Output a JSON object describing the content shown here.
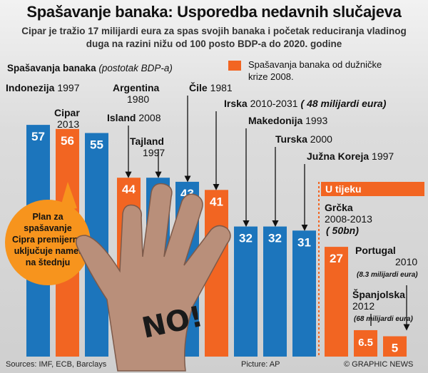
{
  "header": {
    "title": "Spašavanje banaka: Usporedba nedavnih slučajeva",
    "subtitle": "Cipar je tražio 17 milijardi eura za spas svojih banaka i početak reduciranja vladinog duga na razini nižu od 100 posto BDP-a do 2020. godine"
  },
  "legend": {
    "gray_label_bold": "Spašavanja banaka",
    "gray_label_italic": "(postotak BDP-a)",
    "orange_label": "Spašavanja banaka od dužničke krize 2008."
  },
  "callout": {
    "text_lines": [
      "Plan za",
      "spašavanje",
      "Cipra premijerno",
      "uključuje namet",
      "na štednju"
    ]
  },
  "in_progress_label": "U tijeku",
  "footer": {
    "sources": "Sources: IMF, ECB, Barclays",
    "picture": "Picture: AP",
    "credit": "© GRAPHIC NEWS"
  },
  "colors": {
    "blue": "#1c75bc",
    "orange": "#f26522",
    "dark": "#111111",
    "callout_bg": "#f7941d"
  },
  "chart_data": {
    "type": "bar",
    "title": "Spašavanje banaka: Usporedba nedavnih slučajeva",
    "ylabel": "Spašavanja banaka (postotak BDP-a)",
    "ylim": [
      0,
      60
    ],
    "grid": false,
    "legend_position": "top",
    "categories": [
      "Indonezija 1997",
      "Cipar 2013",
      "Argentina 1980",
      "Island 2008",
      "Tajland 1997",
      "Čile 1981",
      "Irska 2010-2031",
      "Makedonija 1993",
      "Turska 2000",
      "Južna Koreja 1997",
      "Grčka 2008-2013",
      "Portugal 2010",
      "Španjolska 2012"
    ],
    "series": [
      {
        "values": [
          57,
          56,
          55,
          44,
          44,
          43,
          41,
          32,
          32,
          31,
          27,
          6.5,
          5
        ],
        "value_labels": [
          "57",
          "56",
          "55",
          "44",
          "44",
          "43",
          "41",
          "32",
          "32",
          "31",
          "27",
          "6.5",
          "5"
        ],
        "colors": [
          "#1c75bc",
          "#f26522",
          "#1c75bc",
          "#f26522",
          "#1c75bc",
          "#1c75bc",
          "#f26522",
          "#1c75bc",
          "#1c75bc",
          "#1c75bc",
          "#f26522",
          "#f26522",
          "#f26522"
        ]
      }
    ],
    "labels": [
      {
        "name": "Indonezija",
        "year": "1997",
        "note": ""
      },
      {
        "name": "Cipar",
        "year": "2013",
        "note": ""
      },
      {
        "name": "Argentina",
        "year": "1980",
        "note": ""
      },
      {
        "name": "Island",
        "year": "2008",
        "note": ""
      },
      {
        "name": "Tajland",
        "year": "1997",
        "note": ""
      },
      {
        "name": "Čile",
        "year": "1981",
        "note": ""
      },
      {
        "name": "Irska",
        "year": "2010-2031",
        "note": "( 48 milijardi eura)"
      },
      {
        "name": "Makedonija",
        "year": "1993",
        "note": ""
      },
      {
        "name": "Turska",
        "year": "2000",
        "note": ""
      },
      {
        "name": "Južna Koreja",
        "year": "1997",
        "note": ""
      },
      {
        "name": "Grčka",
        "year": "2008-2013",
        "note": "( 50bn)"
      },
      {
        "name": "Portugal",
        "year": "2010",
        "note": "(8.3 milijardi eura)"
      },
      {
        "name": "Španjolska",
        "year": "2012",
        "note": "(68 milijardi eura)"
      }
    ]
  }
}
